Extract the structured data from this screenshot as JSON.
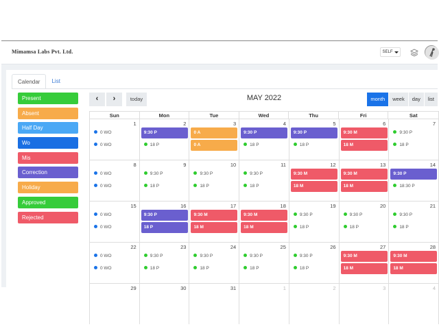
{
  "app": {
    "company": "Mimamsa Labs Pvt. Ltd.",
    "role_select": "SELF"
  },
  "tabs": [
    "Calendar",
    "List"
  ],
  "legend": [
    {
      "label": "Present",
      "color": "#36cc3a"
    },
    {
      "label": "Absent",
      "color": "#f7ab4a"
    },
    {
      "label": "Half Day",
      "color": "#4aa8f5"
    },
    {
      "label": "Wo",
      "color": "#1a6fe3"
    },
    {
      "label": "Mis",
      "color": "#ef5a68"
    },
    {
      "label": "Correction",
      "color": "#6a5fcf"
    },
    {
      "label": "Holiday",
      "color": "#f7ab4a"
    },
    {
      "label": "Approved",
      "color": "#36cc3a"
    },
    {
      "label": "Rejected",
      "color": "#ef5a68"
    }
  ],
  "toolbar": {
    "prev": "‹",
    "next": "›",
    "today": "today",
    "title": "MAY 2022",
    "views": [
      "month",
      "week",
      "day",
      "list"
    ],
    "active_view": "month"
  },
  "weekdays": [
    "Sun",
    "Mon",
    "Tue",
    "Wed",
    "Thu",
    "Fri",
    "Sat"
  ],
  "weeks": [
    [
      {
        "num": "1",
        "events": [
          {
            "text": "0 WO",
            "style": "dot",
            "color": "blue"
          },
          {
            "text": "0 WO",
            "style": "dot",
            "color": "blue"
          }
        ]
      },
      {
        "num": "2",
        "events": [
          {
            "text": "9:30 P",
            "style": "bar",
            "color": "purple"
          },
          {
            "text": "18 P",
            "style": "dot",
            "color": "green"
          }
        ]
      },
      {
        "num": "3",
        "events": [
          {
            "text": "0 A",
            "style": "bar",
            "color": "orange"
          },
          {
            "text": "0 A",
            "style": "bar",
            "color": "orange"
          }
        ]
      },
      {
        "num": "4",
        "events": [
          {
            "text": "9:30 P",
            "style": "bar",
            "color": "purple"
          },
          {
            "text": "18 P",
            "style": "dot",
            "color": "green"
          }
        ]
      },
      {
        "num": "5",
        "events": [
          {
            "text": "9:30 P",
            "style": "bar",
            "color": "purple"
          },
          {
            "text": "18 P",
            "style": "dot",
            "color": "green"
          }
        ]
      },
      {
        "num": "6",
        "events": [
          {
            "text": "9:30 M",
            "style": "bar",
            "color": "red"
          },
          {
            "text": "18 M",
            "style": "bar",
            "color": "red"
          }
        ]
      },
      {
        "num": "7",
        "events": [
          {
            "text": "9:30 P",
            "style": "dot",
            "color": "green"
          },
          {
            "text": "18 P",
            "style": "dot",
            "color": "green"
          }
        ]
      }
    ],
    [
      {
        "num": "8",
        "events": [
          {
            "text": "0 WO",
            "style": "dot",
            "color": "blue"
          },
          {
            "text": "0 WO",
            "style": "dot",
            "color": "blue"
          }
        ]
      },
      {
        "num": "9",
        "events": [
          {
            "text": "9:30 P",
            "style": "dot",
            "color": "green"
          },
          {
            "text": "18 P",
            "style": "dot",
            "color": "green"
          }
        ]
      },
      {
        "num": "10",
        "events": [
          {
            "text": "9:30 P",
            "style": "dot",
            "color": "green"
          },
          {
            "text": "18 P",
            "style": "dot",
            "color": "green"
          }
        ]
      },
      {
        "num": "11",
        "events": [
          {
            "text": "9:30 P",
            "style": "dot",
            "color": "green"
          },
          {
            "text": "18 P",
            "style": "dot",
            "color": "green"
          }
        ]
      },
      {
        "num": "12",
        "events": [
          {
            "text": "9:30 M",
            "style": "bar",
            "color": "red"
          },
          {
            "text": "18 M",
            "style": "bar",
            "color": "red"
          }
        ]
      },
      {
        "num": "13",
        "events": [
          {
            "text": "9:30 M",
            "style": "bar",
            "color": "red"
          },
          {
            "text": "18 M",
            "style": "bar",
            "color": "red"
          }
        ]
      },
      {
        "num": "14",
        "events": [
          {
            "text": "9:30 P",
            "style": "bar",
            "color": "purple"
          },
          {
            "text": "18:30 P",
            "style": "dot",
            "color": "green"
          }
        ]
      }
    ],
    [
      {
        "num": "15",
        "events": [
          {
            "text": "0 WO",
            "style": "dot",
            "color": "blue"
          },
          {
            "text": "0 WO",
            "style": "dot",
            "color": "blue"
          }
        ]
      },
      {
        "num": "16",
        "events": [
          {
            "text": "9:30 P",
            "style": "bar",
            "color": "purple"
          },
          {
            "text": "18 P",
            "style": "bar",
            "color": "purple"
          }
        ]
      },
      {
        "num": "17",
        "events": [
          {
            "text": "9:30 M",
            "style": "bar",
            "color": "red"
          },
          {
            "text": "18 M",
            "style": "bar",
            "color": "red"
          }
        ]
      },
      {
        "num": "18",
        "events": [
          {
            "text": "9:30 M",
            "style": "bar",
            "color": "red"
          },
          {
            "text": "18 M",
            "style": "bar",
            "color": "red"
          }
        ]
      },
      {
        "num": "19",
        "events": [
          {
            "text": "9:30 P",
            "style": "dot",
            "color": "green"
          },
          {
            "text": "18 P",
            "style": "dot",
            "color": "green"
          }
        ]
      },
      {
        "num": "20",
        "events": [
          {
            "text": "9:30 P",
            "style": "dot",
            "color": "green"
          },
          {
            "text": "18 P",
            "style": "dot",
            "color": "green"
          }
        ]
      },
      {
        "num": "21",
        "events": [
          {
            "text": "9:30 P",
            "style": "dot",
            "color": "green"
          },
          {
            "text": "18 P",
            "style": "dot",
            "color": "green"
          }
        ]
      }
    ],
    [
      {
        "num": "22",
        "events": [
          {
            "text": "0 WO",
            "style": "dot",
            "color": "blue"
          },
          {
            "text": "0 WO",
            "style": "dot",
            "color": "blue"
          }
        ]
      },
      {
        "num": "23",
        "events": [
          {
            "text": "9:30 P",
            "style": "dot",
            "color": "green"
          },
          {
            "text": "18 P",
            "style": "dot",
            "color": "green"
          }
        ]
      },
      {
        "num": "24",
        "events": [
          {
            "text": "9:30 P",
            "style": "dot",
            "color": "green"
          },
          {
            "text": "18 P",
            "style": "dot",
            "color": "green"
          }
        ]
      },
      {
        "num": "25",
        "events": [
          {
            "text": "9:30 P",
            "style": "dot",
            "color": "green"
          },
          {
            "text": "18 P",
            "style": "dot",
            "color": "green"
          }
        ]
      },
      {
        "num": "26",
        "events": [
          {
            "text": "9:30 P",
            "style": "dot",
            "color": "green"
          },
          {
            "text": "18 P",
            "style": "dot",
            "color": "green"
          }
        ]
      },
      {
        "num": "27",
        "events": [
          {
            "text": "9:30 M",
            "style": "bar",
            "color": "red"
          },
          {
            "text": "18 M",
            "style": "bar",
            "color": "red"
          }
        ]
      },
      {
        "num": "28",
        "events": [
          {
            "text": "9:30 M",
            "style": "bar",
            "color": "red"
          },
          {
            "text": "18 M",
            "style": "bar",
            "color": "red"
          }
        ]
      }
    ],
    [
      {
        "num": "29",
        "events": []
      },
      {
        "num": "30",
        "events": []
      },
      {
        "num": "31",
        "events": []
      },
      {
        "num": "1",
        "faded": true,
        "events": []
      },
      {
        "num": "2",
        "faded": true,
        "events": []
      },
      {
        "num": "3",
        "faded": true,
        "events": []
      },
      {
        "num": "4",
        "faded": true,
        "events": []
      }
    ]
  ]
}
